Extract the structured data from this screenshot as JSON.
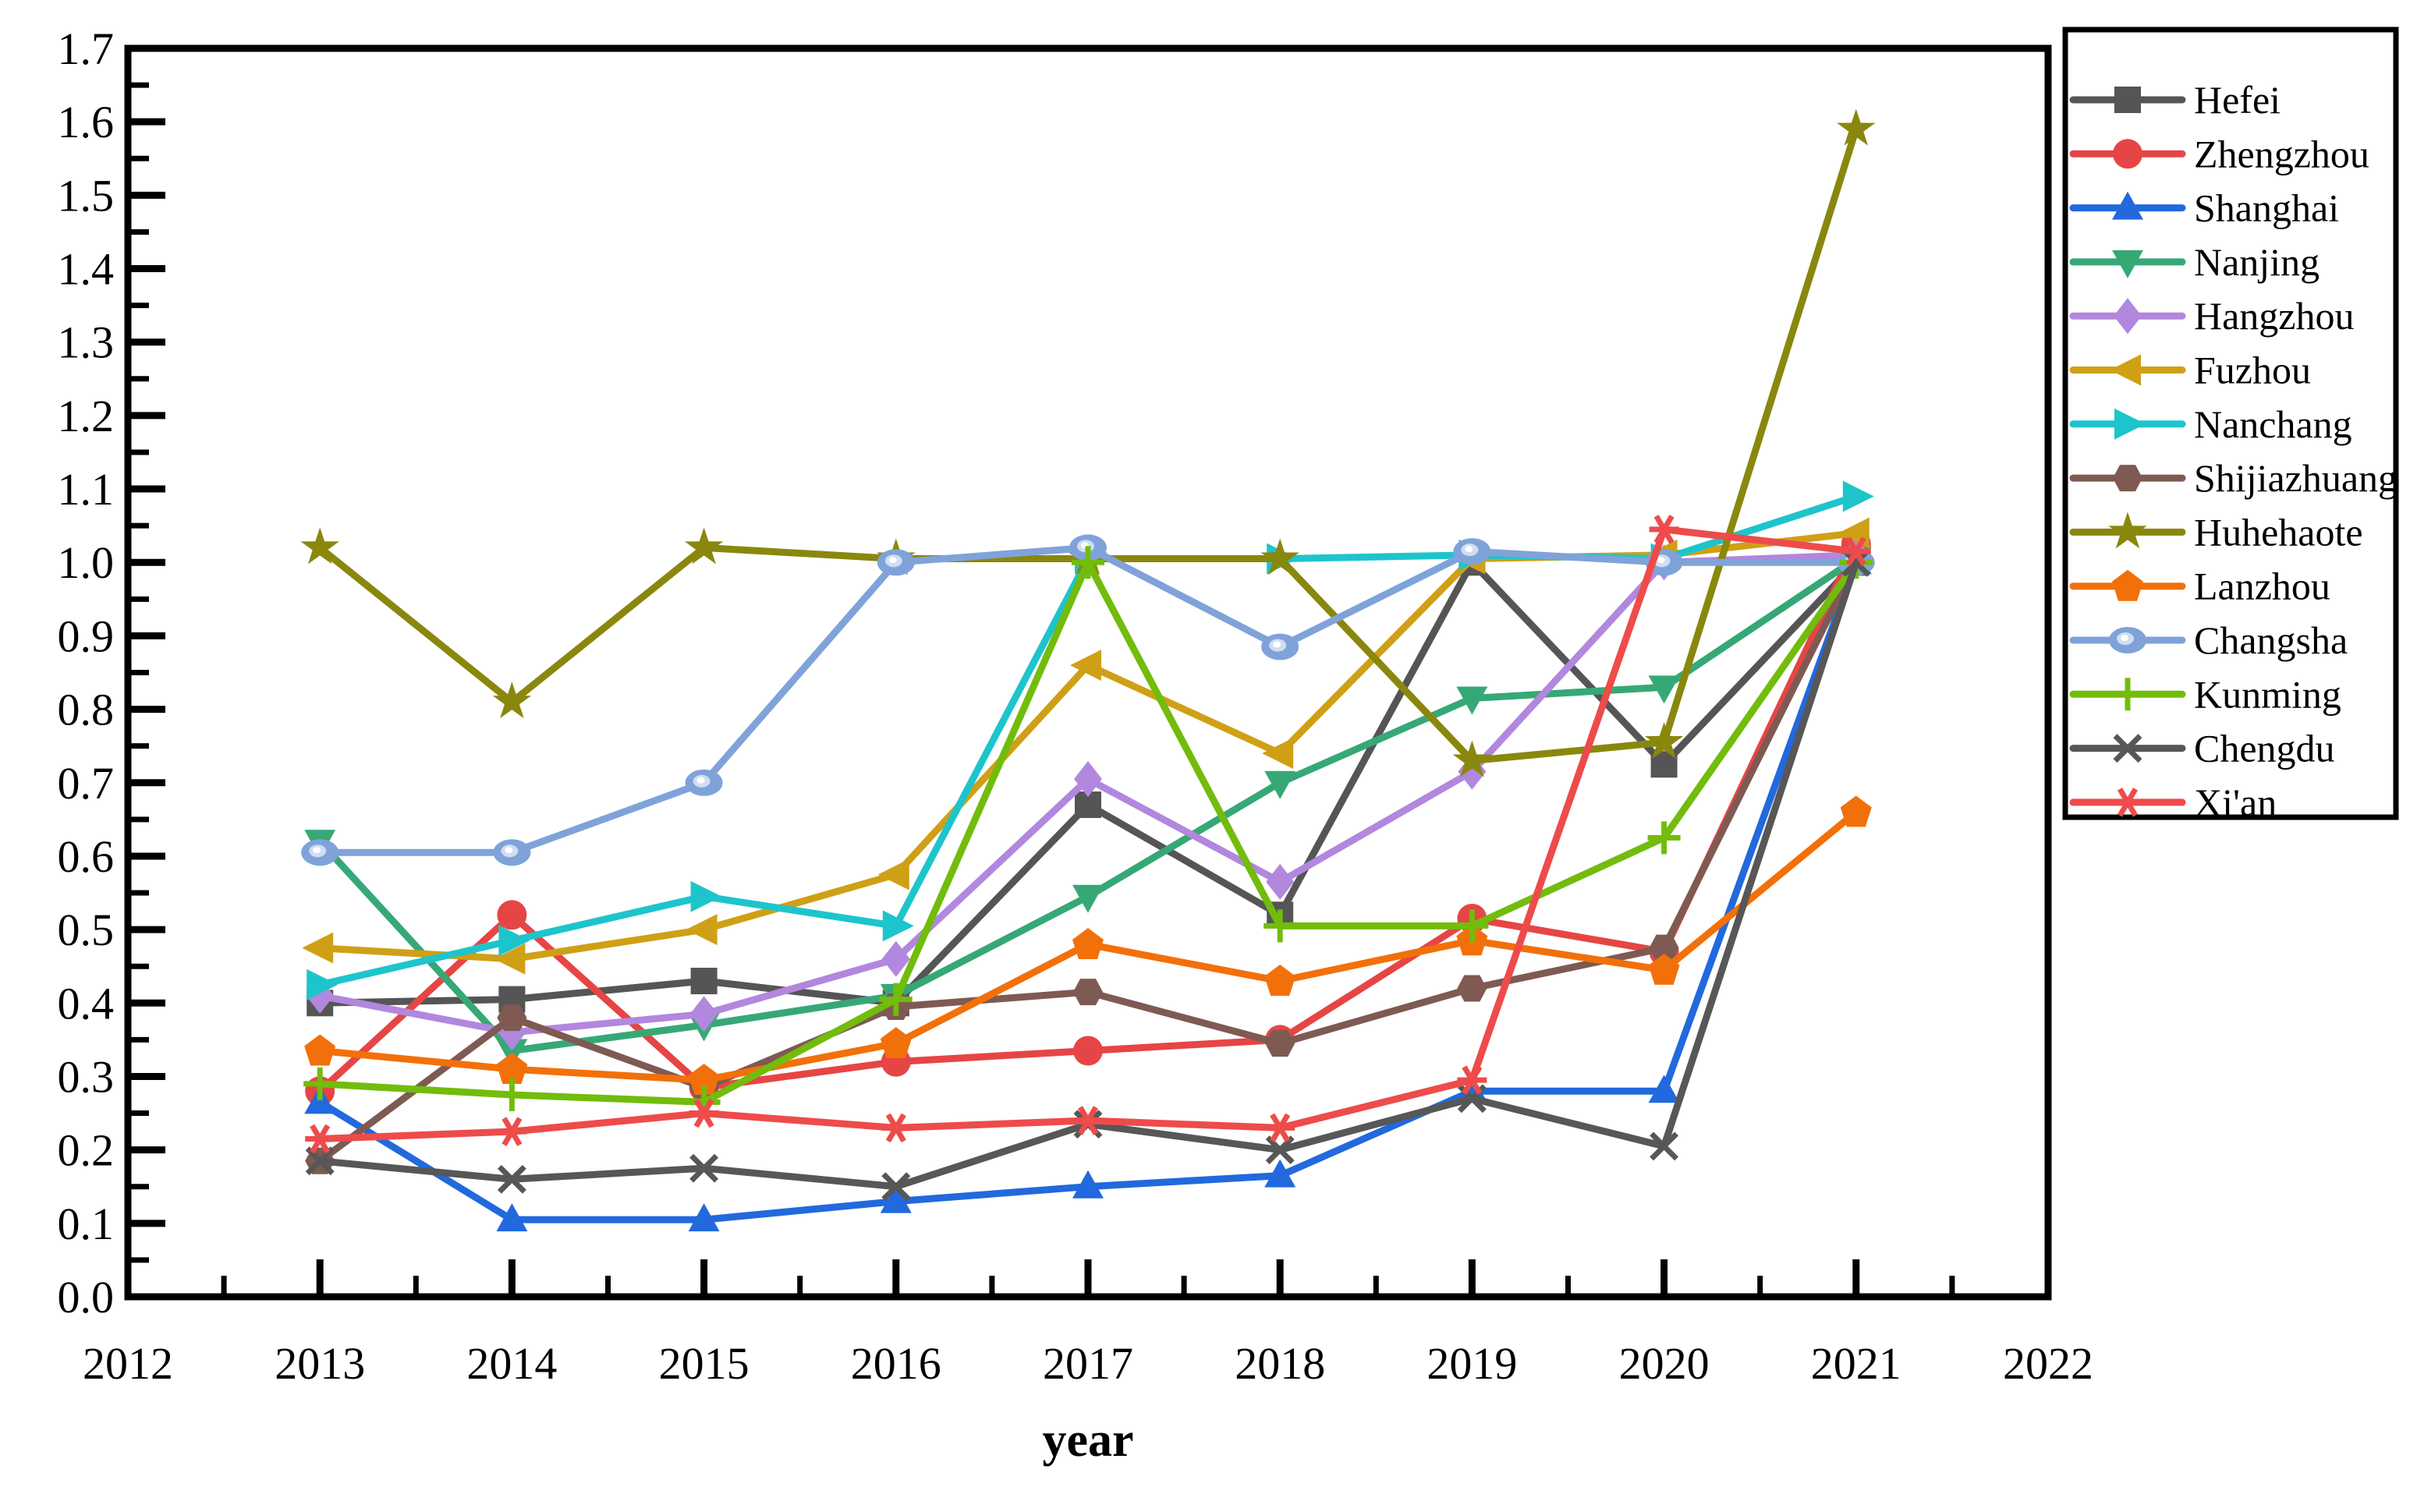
{
  "chart_data": {
    "type": "line",
    "title": "",
    "xlabel": "year",
    "ylabel": "",
    "xlim": [
      2012,
      2022
    ],
    "ylim": [
      0.0,
      1.7
    ],
    "grid": false,
    "legend_position": "upper-right-outside",
    "x_tick_labels": [
      "2012",
      "2013",
      "2014",
      "2015",
      "2016",
      "2017",
      "2018",
      "2019",
      "2020",
      "2021",
      "2022"
    ],
    "y_tick_labels": [
      "0.0",
      "0.1",
      "0.2",
      "0.3",
      "0.4",
      "0.5",
      "0.6",
      "0.7",
      "0.8",
      "0.9",
      "1.0",
      "1.1",
      "1.2",
      "1.3",
      "1.4",
      "1.5",
      "1.6",
      "1.7"
    ],
    "x": [
      2013,
      2014,
      2015,
      2016,
      2017,
      2018,
      2019,
      2020,
      2021
    ],
    "series": [
      {
        "name": "Hefei",
        "color": "#555555",
        "marker": "square",
        "values": [
          0.4,
          0.405,
          0.43,
          0.4,
          0.67,
          0.52,
          1.0,
          0.725,
          1.0
        ]
      },
      {
        "name": "Zhengzhou",
        "color": "#e64545",
        "marker": "circle",
        "values": [
          0.28,
          0.52,
          0.285,
          0.32,
          0.335,
          0.35,
          0.515,
          0.47,
          1.025
        ]
      },
      {
        "name": "Shanghai",
        "color": "#2169dd",
        "marker": "triangle-up",
        "values": [
          0.265,
          0.105,
          0.105,
          0.13,
          0.15,
          0.165,
          0.28,
          0.28,
          1.0
        ]
      },
      {
        "name": "Nanjing",
        "color": "#36a876",
        "marker": "triangle-down",
        "values": [
          0.62,
          0.335,
          0.37,
          0.41,
          0.545,
          0.7,
          0.815,
          0.83,
          1.005
        ]
      },
      {
        "name": "Hangzhou",
        "color": "#b287de",
        "marker": "diamond",
        "values": [
          0.41,
          0.36,
          0.385,
          0.46,
          0.705,
          0.565,
          0.715,
          1.0,
          1.01
        ]
      },
      {
        "name": "Fuzhou",
        "color": "#cfa016",
        "marker": "triangle-left",
        "values": [
          0.475,
          0.46,
          0.5,
          0.575,
          0.86,
          0.74,
          1.005,
          1.01,
          1.04
        ]
      },
      {
        "name": "Nanchang",
        "color": "#1ec4cc",
        "marker": "triangle-right",
        "values": [
          0.425,
          0.485,
          0.545,
          0.505,
          1.005,
          1.005,
          1.01,
          1.005,
          1.09
        ]
      },
      {
        "name": "Shijiazhuang",
        "color": "#7e5a52",
        "marker": "hexagon",
        "values": [
          0.185,
          0.38,
          0.285,
          0.395,
          0.415,
          0.345,
          0.42,
          0.475,
          1.0
        ]
      },
      {
        "name": "Huhehaote",
        "color": "#8a870e",
        "marker": "star",
        "values": [
          1.02,
          0.81,
          1.02,
          1.005,
          1.005,
          1.005,
          0.73,
          0.755,
          1.59
        ]
      },
      {
        "name": "Lanzhou",
        "color": "#f2700a",
        "marker": "pentagon",
        "values": [
          0.335,
          0.31,
          0.295,
          0.345,
          0.48,
          0.43,
          0.485,
          0.445,
          0.66
        ]
      },
      {
        "name": "Changsha",
        "color": "#7fa3d9",
        "marker": "circle-soft",
        "values": [
          0.605,
          0.605,
          0.7,
          1.0,
          1.02,
          0.885,
          1.015,
          1.0,
          1.0
        ]
      },
      {
        "name": "Kunming",
        "color": "#72bc0c",
        "marker": "plus",
        "values": [
          0.29,
          0.275,
          0.265,
          0.405,
          1.0,
          0.505,
          0.505,
          0.625,
          1.0
        ]
      },
      {
        "name": "Chengdu",
        "color": "#575757",
        "marker": "x",
        "values": [
          0.185,
          0.16,
          0.175,
          0.15,
          0.235,
          0.2,
          0.27,
          0.205,
          1.0
        ]
      },
      {
        "name": "Xi'an",
        "color": "#ee4b4b",
        "marker": "asterisk",
        "values": [
          0.215,
          0.225,
          0.25,
          0.23,
          0.24,
          0.23,
          0.295,
          1.045,
          1.015
        ]
      }
    ]
  }
}
